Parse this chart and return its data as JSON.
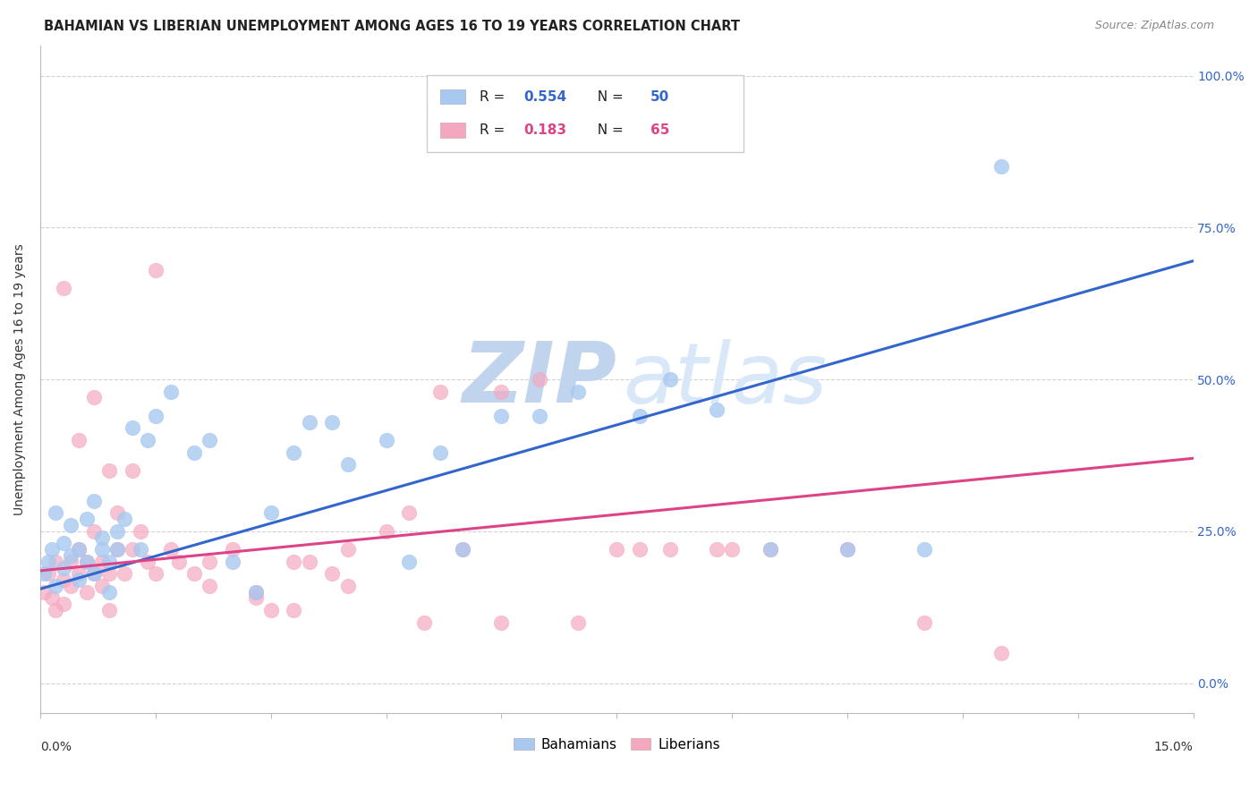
{
  "title": "BAHAMIAN VS LIBERIAN UNEMPLOYMENT AMONG AGES 16 TO 19 YEARS CORRELATION CHART",
  "source": "Source: ZipAtlas.com",
  "ylabel_axis": "Unemployment Among Ages 16 to 19 years",
  "legend_blue_R": "0.554",
  "legend_blue_N": "50",
  "legend_pink_R": "0.183",
  "legend_pink_N": "65",
  "blue_color": "#A8C8F0",
  "pink_color": "#F4A8C0",
  "blue_line_color": "#3366CC",
  "pink_line_color": "#DD4488",
  "watermark_ZIP_color": "#C0D4EE",
  "watermark_atlas_color": "#D8E8F8",
  "background_color": "#FFFFFF",
  "xlim": [
    0.0,
    0.15
  ],
  "ylim": [
    -0.05,
    1.05
  ],
  "ytick_vals": [
    0.0,
    0.25,
    0.5,
    0.75,
    1.0
  ],
  "xtick_count": 11,
  "blue_scatter_x": [
    0.0005,
    0.001,
    0.0015,
    0.002,
    0.002,
    0.003,
    0.003,
    0.004,
    0.004,
    0.005,
    0.005,
    0.006,
    0.006,
    0.007,
    0.007,
    0.008,
    0.008,
    0.009,
    0.009,
    0.01,
    0.01,
    0.011,
    0.012,
    0.013,
    0.014,
    0.015,
    0.017,
    0.02,
    0.022,
    0.025,
    0.028,
    0.03,
    0.033,
    0.035,
    0.038,
    0.04,
    0.045,
    0.048,
    0.052,
    0.055,
    0.06,
    0.065,
    0.07,
    0.078,
    0.082,
    0.088,
    0.095,
    0.105,
    0.115,
    0.125
  ],
  "blue_scatter_y": [
    0.18,
    0.2,
    0.22,
    0.16,
    0.28,
    0.19,
    0.23,
    0.21,
    0.26,
    0.22,
    0.17,
    0.27,
    0.2,
    0.3,
    0.18,
    0.22,
    0.24,
    0.2,
    0.15,
    0.25,
    0.22,
    0.27,
    0.42,
    0.22,
    0.4,
    0.44,
    0.48,
    0.38,
    0.4,
    0.2,
    0.15,
    0.28,
    0.38,
    0.43,
    0.43,
    0.36,
    0.4,
    0.2,
    0.38,
    0.22,
    0.44,
    0.44,
    0.48,
    0.44,
    0.5,
    0.45,
    0.22,
    0.22,
    0.22,
    0.85
  ],
  "pink_scatter_x": [
    0.0005,
    0.001,
    0.0015,
    0.002,
    0.002,
    0.003,
    0.003,
    0.004,
    0.004,
    0.005,
    0.005,
    0.006,
    0.006,
    0.007,
    0.007,
    0.008,
    0.008,
    0.009,
    0.009,
    0.01,
    0.01,
    0.011,
    0.012,
    0.013,
    0.014,
    0.015,
    0.017,
    0.02,
    0.022,
    0.025,
    0.028,
    0.03,
    0.033,
    0.035,
    0.038,
    0.04,
    0.045,
    0.048,
    0.052,
    0.055,
    0.06,
    0.065,
    0.07,
    0.078,
    0.082,
    0.088,
    0.095,
    0.105,
    0.115,
    0.125,
    0.003,
    0.005,
    0.007,
    0.009,
    0.012,
    0.015,
    0.018,
    0.022,
    0.028,
    0.033,
    0.04,
    0.05,
    0.06,
    0.075,
    0.09
  ],
  "pink_scatter_y": [
    0.15,
    0.18,
    0.14,
    0.2,
    0.12,
    0.17,
    0.13,
    0.16,
    0.2,
    0.18,
    0.22,
    0.15,
    0.2,
    0.18,
    0.25,
    0.2,
    0.16,
    0.12,
    0.18,
    0.22,
    0.28,
    0.18,
    0.22,
    0.25,
    0.2,
    0.18,
    0.22,
    0.18,
    0.2,
    0.22,
    0.15,
    0.12,
    0.2,
    0.2,
    0.18,
    0.22,
    0.25,
    0.28,
    0.48,
    0.22,
    0.48,
    0.5,
    0.1,
    0.22,
    0.22,
    0.22,
    0.22,
    0.22,
    0.1,
    0.05,
    0.65,
    0.4,
    0.47,
    0.35,
    0.35,
    0.68,
    0.2,
    0.16,
    0.14,
    0.12,
    0.16,
    0.1,
    0.1,
    0.22,
    0.22
  ],
  "blue_trend_y_start": 0.155,
  "blue_trend_y_end": 0.695,
  "pink_trend_y_start": 0.185,
  "pink_trend_y_end": 0.37,
  "title_fontsize": 10.5,
  "source_fontsize": 9,
  "axis_label_fontsize": 10,
  "tick_label_fontsize": 10,
  "legend_fontsize": 11
}
